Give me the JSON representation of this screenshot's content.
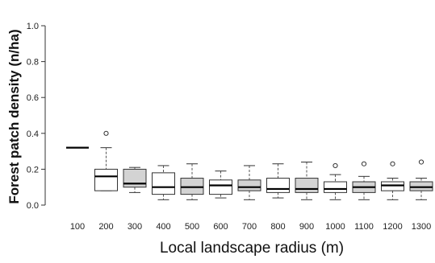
{
  "chart_data": {
    "type": "boxplot",
    "xlabel": "Local landscape radius (m)",
    "ylabel": "Forest patch density (n/ha)",
    "ylim": [
      0.0,
      1.0
    ],
    "yticks": [
      "0.0",
      "0.2",
      "0.4",
      "0.6",
      "0.8",
      "1.0"
    ],
    "categories": [
      "100",
      "200",
      "300",
      "400",
      "500",
      "600",
      "700",
      "800",
      "900",
      "1000",
      "1100",
      "1200",
      "1300"
    ],
    "grid": false,
    "fill_colors": {
      "shaded": "#d3d3d3",
      "white": "#ffffff"
    },
    "boxes": [
      {
        "category": "100",
        "min": 0.32,
        "q1": 0.32,
        "median": 0.32,
        "q3": 0.32,
        "max": 0.32,
        "outliers": [],
        "shaded": false
      },
      {
        "category": "200",
        "min": 0.08,
        "q1": 0.08,
        "median": 0.16,
        "q3": 0.2,
        "max": 0.32,
        "outliers": [
          0.4
        ],
        "shaded": false
      },
      {
        "category": "300",
        "min": 0.07,
        "q1": 0.1,
        "median": 0.12,
        "q3": 0.2,
        "max": 0.21,
        "outliers": [],
        "shaded": true
      },
      {
        "category": "400",
        "min": 0.03,
        "q1": 0.06,
        "median": 0.1,
        "q3": 0.18,
        "max": 0.22,
        "outliers": [],
        "shaded": false
      },
      {
        "category": "500",
        "min": 0.03,
        "q1": 0.06,
        "median": 0.1,
        "q3": 0.15,
        "max": 0.23,
        "outliers": [],
        "shaded": true
      },
      {
        "category": "600",
        "min": 0.04,
        "q1": 0.06,
        "median": 0.11,
        "q3": 0.14,
        "max": 0.19,
        "outliers": [],
        "shaded": false
      },
      {
        "category": "700",
        "min": 0.03,
        "q1": 0.08,
        "median": 0.1,
        "q3": 0.14,
        "max": 0.22,
        "outliers": [],
        "shaded": true
      },
      {
        "category": "800",
        "min": 0.04,
        "q1": 0.07,
        "median": 0.09,
        "q3": 0.15,
        "max": 0.23,
        "outliers": [],
        "shaded": false
      },
      {
        "category": "900",
        "min": 0.03,
        "q1": 0.07,
        "median": 0.09,
        "q3": 0.15,
        "max": 0.24,
        "outliers": [],
        "shaded": true
      },
      {
        "category": "1000",
        "min": 0.03,
        "q1": 0.07,
        "median": 0.09,
        "q3": 0.13,
        "max": 0.17,
        "outliers": [
          0.22
        ],
        "shaded": false
      },
      {
        "category": "1100",
        "min": 0.03,
        "q1": 0.07,
        "median": 0.1,
        "q3": 0.13,
        "max": 0.16,
        "outliers": [
          0.23
        ],
        "shaded": true
      },
      {
        "category": "1200",
        "min": 0.03,
        "q1": 0.08,
        "median": 0.11,
        "q3": 0.13,
        "max": 0.15,
        "outliers": [
          0.23
        ],
        "shaded": false
      },
      {
        "category": "1300",
        "min": 0.03,
        "q1": 0.08,
        "median": 0.1,
        "q3": 0.13,
        "max": 0.15,
        "outliers": [
          0.24
        ],
        "shaded": true
      }
    ]
  }
}
